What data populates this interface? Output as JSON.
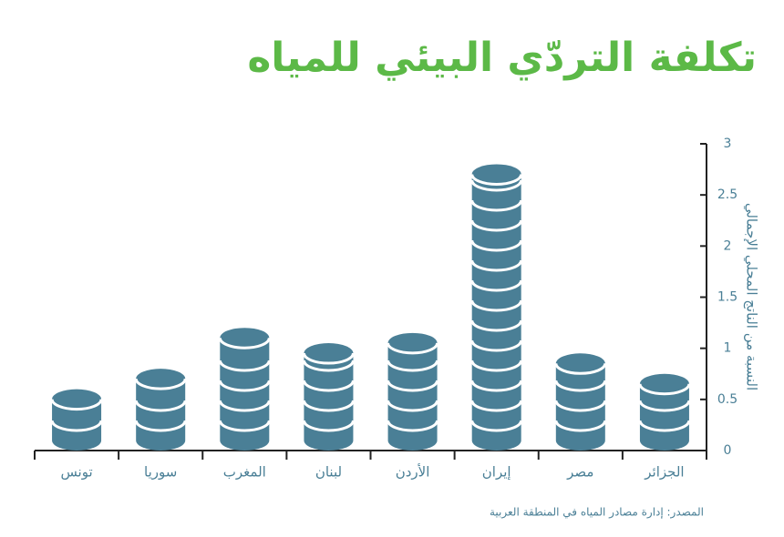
{
  "chart_data": {
    "type": "bar",
    "title": "تكلفة التردّي البيئي للمياه",
    "y_label": "النسبة من الناتج المحلي الإجمالي",
    "source": "المصدر: إدارة مصادر المياه في المنطقة العربية",
    "categories": [
      "الجزائر",
      "مصر",
      "إيران",
      "الأردن",
      "لبنان",
      "المغرب",
      "سوريا",
      "تونس"
    ],
    "values": [
      0.75,
      0.95,
      2.8,
      1.15,
      1.05,
      1.2,
      0.8,
      0.6
    ],
    "color": "#4a7f96",
    "ylim": [
      0,
      3
    ],
    "yticks": [
      0,
      0.5,
      1,
      1.5,
      2,
      2.5,
      3
    ],
    "grid": false
  }
}
